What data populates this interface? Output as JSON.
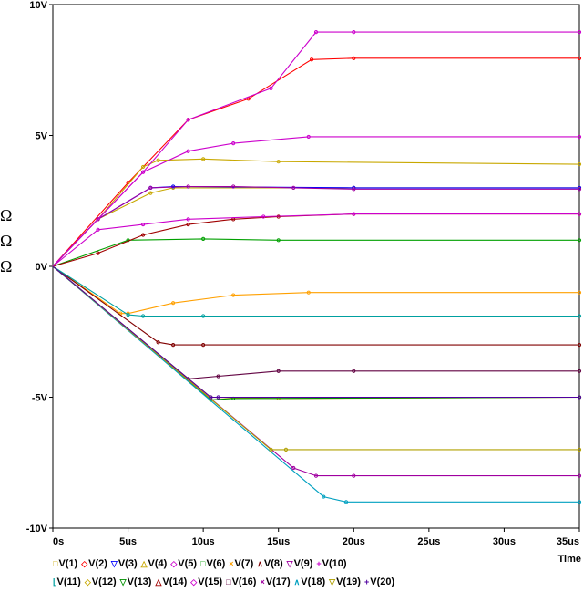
{
  "chart_data": {
    "type": "line",
    "xlabel": "Time",
    "x_unit": "us",
    "y_unit": "V",
    "xlim": [
      0,
      35
    ],
    "ylim": [
      -10,
      10
    ],
    "x_ticks": [
      "0s",
      "5us",
      "10us",
      "15us",
      "20us",
      "25us",
      "30us",
      "35us"
    ],
    "y_ticks": [
      "10V",
      "5V",
      "0V",
      "-5V",
      "-10V"
    ],
    "series": [
      {
        "name": "V(1)",
        "color": "#c8a800",
        "x": [
          0,
          3,
          6.5,
          8,
          20,
          35
        ],
        "y": [
          0,
          1.8,
          2.8,
          3.0,
          3.0,
          3.0
        ]
      },
      {
        "name": "V(2)",
        "color": "#ff0000",
        "x": [
          0,
          5,
          9,
          13,
          17.2,
          20,
          35
        ],
        "y": [
          0,
          3.2,
          5.6,
          6.4,
          7.9,
          7.95,
          7.95
        ]
      },
      {
        "name": "V(3)",
        "color": "#0000ff",
        "x": [
          0,
          3,
          6.5,
          8,
          20,
          35
        ],
        "y": [
          0,
          1.8,
          3.0,
          3.05,
          3.0,
          3.0
        ]
      },
      {
        "name": "V(4)",
        "color": "#c8a800",
        "x": [
          0,
          3,
          6,
          7,
          10,
          15,
          35
        ],
        "y": [
          0,
          1.8,
          3.8,
          4.05,
          4.1,
          4.0,
          3.9
        ]
      },
      {
        "name": "V(5)",
        "color": "#cc00cc",
        "x": [
          0,
          3,
          6,
          9,
          12,
          17,
          35
        ],
        "y": [
          0,
          1.8,
          3.6,
          4.4,
          4.7,
          4.95,
          4.95
        ]
      },
      {
        "name": "V(6)",
        "color": "#00a000",
        "x": [
          0,
          5,
          10,
          15,
          35
        ],
        "y": [
          0,
          1.0,
          1.05,
          1.0,
          1.0
        ]
      },
      {
        "name": "V(7)",
        "color": "#ffa000",
        "x": [
          0,
          4.5,
          5,
          8,
          12,
          17,
          35
        ],
        "y": [
          0,
          -1.8,
          -1.8,
          -1.4,
          -1.1,
          -1.0,
          -1.0
        ]
      },
      {
        "name": "V(8)",
        "color": "#800000",
        "x": [
          0,
          7,
          8,
          10,
          35
        ],
        "y": [
          0,
          -2.9,
          -3.0,
          -3.0,
          -3.0
        ]
      },
      {
        "name": "V(9)",
        "color": "#a000a0",
        "x": [
          0,
          3,
          6.5,
          9,
          12,
          16,
          20,
          35
        ],
        "y": [
          0,
          1.8,
          3.0,
          3.05,
          3.05,
          3.0,
          2.95,
          2.95
        ]
      },
      {
        "name": "V(10)",
        "color": "#cc00cc",
        "x": [
          0,
          6,
          9,
          14.5,
          17.5,
          20,
          35
        ],
        "y": [
          0,
          3.6,
          5.6,
          6.8,
          8.95,
          8.95,
          8.95
        ]
      },
      {
        "name": "V(11)",
        "color": "#00a0a0",
        "x": [
          0,
          5,
          6,
          10,
          35
        ],
        "y": [
          0,
          -1.85,
          -1.9,
          -1.9,
          -1.9
        ]
      },
      {
        "name": "V(12)",
        "color": "#c8a800",
        "x": [
          0,
          10.5,
          15,
          35
        ],
        "y": [
          0,
          -5.0,
          -5.05,
          -5.0
        ]
      },
      {
        "name": "V(13)",
        "color": "#009000",
        "x": [
          0,
          10.5,
          12,
          35
        ],
        "y": [
          0,
          -5.1,
          -5.05,
          -5.0
        ]
      },
      {
        "name": "V(14)",
        "color": "#a00000",
        "x": [
          0,
          3,
          6,
          9,
          12,
          15,
          20,
          35
        ],
        "y": [
          0,
          0.5,
          1.2,
          1.6,
          1.8,
          1.9,
          2.0,
          2.0
        ]
      },
      {
        "name": "V(15)",
        "color": "#cc00cc",
        "x": [
          0,
          3,
          6,
          9,
          14,
          20,
          35
        ],
        "y": [
          0,
          1.4,
          1.6,
          1.8,
          1.9,
          2.0,
          2.0
        ]
      },
      {
        "name": "V(16)",
        "color": "#600040",
        "x": [
          0,
          9,
          11,
          15,
          20,
          35
        ],
        "y": [
          0,
          -4.3,
          -4.2,
          -4.0,
          -4.0,
          -4.0
        ]
      },
      {
        "name": "V(17)",
        "color": "#a000a0",
        "x": [
          0,
          16,
          17.5,
          20,
          35
        ],
        "y": [
          0,
          -7.7,
          -8.0,
          -8.0,
          -8.0
        ]
      },
      {
        "name": "V(18)",
        "color": "#00a0c0",
        "x": [
          0,
          18,
          19.5,
          35
        ],
        "y": [
          0,
          -8.8,
          -9.0,
          -9.0
        ]
      },
      {
        "name": "V(19)",
        "color": "#b0a000",
        "x": [
          0,
          14.5,
          15.5,
          35
        ],
        "y": [
          0,
          -7.0,
          -7.0,
          -7.0
        ]
      },
      {
        "name": "V(20)",
        "color": "#5000a0",
        "x": [
          0,
          10.5,
          11,
          35
        ],
        "y": [
          0,
          -5.0,
          -5.0,
          -5.0
        ]
      }
    ]
  },
  "legend": {
    "row1": [
      {
        "mark": "□",
        "label": "V(1)",
        "color": "#c8a800"
      },
      {
        "mark": "◇",
        "label": "V(2)",
        "color": "#ff0000"
      },
      {
        "mark": "▽",
        "label": "V(3)",
        "color": "#0000ff"
      },
      {
        "mark": "△",
        "label": "V(4)",
        "color": "#c8a800"
      },
      {
        "mark": "◇",
        "label": "V(5)",
        "color": "#cc00cc"
      },
      {
        "mark": "□",
        "label": "V(6)",
        "color": "#00a000"
      },
      {
        "mark": "×",
        "label": "V(7)",
        "color": "#ffa000"
      },
      {
        "mark": "∧",
        "label": "V(8)",
        "color": "#800000"
      },
      {
        "mark": "▽",
        "label": "V(9)",
        "color": "#a000a0"
      },
      {
        "mark": "+",
        "label": "V(10)",
        "color": "#cc00cc"
      }
    ],
    "row2": [
      {
        "mark": "⌊",
        "label": "V(11)",
        "color": "#00a0a0"
      },
      {
        "mark": "◇",
        "label": "V(12)",
        "color": "#c8a800"
      },
      {
        "mark": "▽",
        "label": "V(13)",
        "color": "#009000"
      },
      {
        "mark": "△",
        "label": "V(14)",
        "color": "#a00000"
      },
      {
        "mark": "◇",
        "label": "V(15)",
        "color": "#cc00cc"
      },
      {
        "mark": "□",
        "label": "V(16)",
        "color": "#600040"
      },
      {
        "mark": "×",
        "label": "V(17)",
        "color": "#a000a0"
      },
      {
        "mark": "∧",
        "label": "V(18)",
        "color": "#00a0c0"
      },
      {
        "mark": "▽",
        "label": "V(19)",
        "color": "#b0a000"
      },
      {
        "mark": "+",
        "label": "V(20)",
        "color": "#5000a0"
      }
    ]
  },
  "omega_marks": [
    "Ω",
    "Ω",
    "Ω"
  ]
}
